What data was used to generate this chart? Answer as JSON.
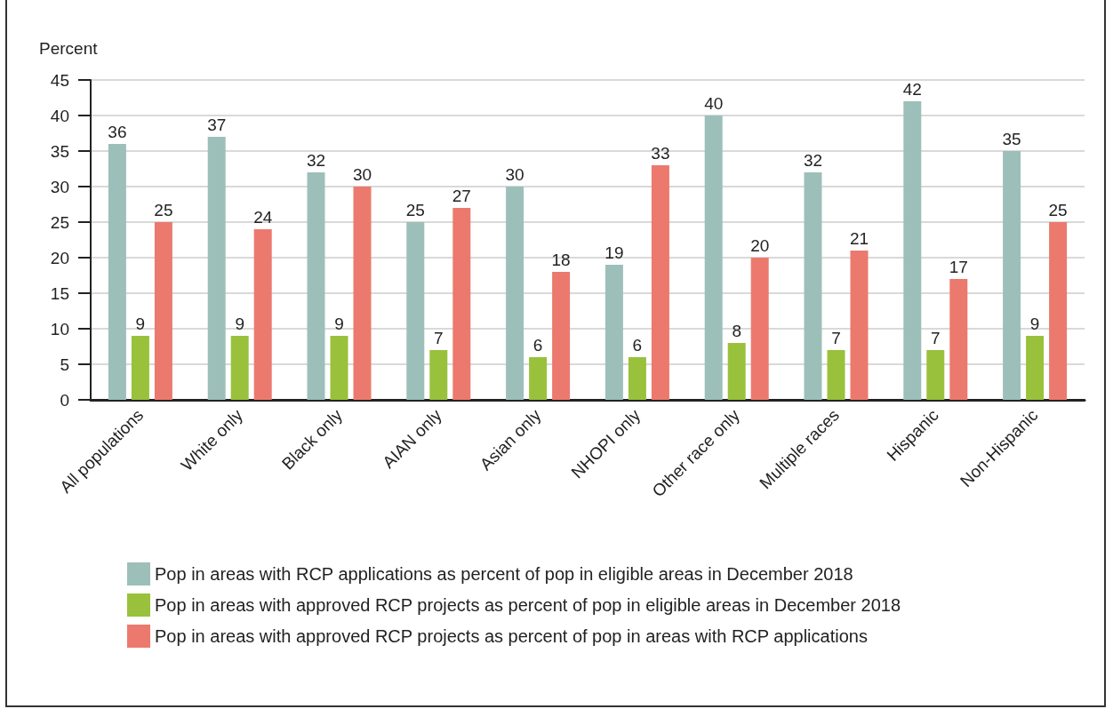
{
  "chart_data": {
    "type": "bar",
    "ylabel": "Percent",
    "categories": [
      "All populations",
      "White only",
      "Black only",
      "AIAN only",
      "Asian only",
      "NHOPI only",
      "Other race only",
      "Multiple races",
      "Hispanic",
      "Non-Hispanic"
    ],
    "series": [
      {
        "name": "Pop in areas with RCP applications as percent of pop in eligible areas in December 2018",
        "color": "#9dbfb9",
        "values": [
          36,
          37,
          32,
          25,
          30,
          19,
          40,
          32,
          42,
          35
        ]
      },
      {
        "name": "Pop in areas with approved RCP projects as percent of pop in eligible areas in December 2018",
        "color": "#99c13c",
        "values": [
          9,
          9,
          9,
          7,
          6,
          6,
          8,
          7,
          7,
          9
        ]
      },
      {
        "name": "Pop in areas with approved RCP projects as percent of pop in areas with RCP applications",
        "color": "#ec796e",
        "values": [
          25,
          24,
          30,
          27,
          18,
          33,
          20,
          21,
          17,
          25
        ]
      }
    ],
    "ylim": [
      0,
      45
    ],
    "yticks": [
      0,
      5,
      10,
      15,
      20,
      25,
      30,
      35,
      40,
      45
    ],
    "grid": "y",
    "legend": "bottom",
    "data_labels": true
  }
}
